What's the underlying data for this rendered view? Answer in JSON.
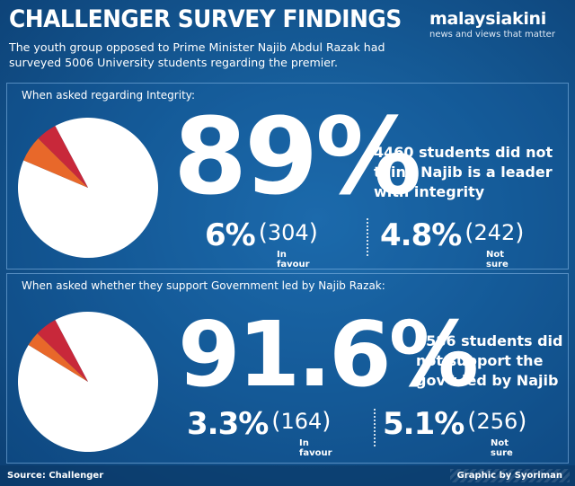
{
  "header": {
    "title": "CHALLENGER SURVEY FINDINGS",
    "subtitle": "The youth group opposed to Prime Minister Najib Abdul Razak had surveyed 5006 University students regarding the premier.",
    "brand_name": "malaysiakini",
    "brand_tagline": "news and views that matter"
  },
  "colors": {
    "background": "#155a96",
    "pie_majority": "#ffffff",
    "pie_favour": "#e8682a",
    "pie_not_sure": "#c8283a"
  },
  "chart_data": [
    {
      "type": "pie",
      "title": "When asked regarding Integrity:",
      "slices": [
        {
          "label": "",
          "value": 89.0,
          "count": 4460
        },
        {
          "label": "In favour",
          "value": 6.0,
          "count": 304
        },
        {
          "label": "Not sure",
          "value": 4.8,
          "count": 242
        }
      ],
      "headline_value": "89",
      "headline_unit": "%",
      "description": "4460 students did not think Najib is a leader with integrity",
      "stats": [
        {
          "pct": "6%",
          "count": "304",
          "label": "In favour"
        },
        {
          "pct": "4.8%",
          "count": "242",
          "label": "Not sure"
        }
      ]
    },
    {
      "type": "pie",
      "title": "When asked whether they support Government led by Najib Razak:",
      "slices": [
        {
          "label": "",
          "value": 91.6,
          "count": 4586
        },
        {
          "label": "In favour",
          "value": 3.3,
          "count": 164
        },
        {
          "label": "Not sure",
          "value": 5.1,
          "count": 256
        }
      ],
      "headline_value": "91.6",
      "headline_unit": "%",
      "description": "4586 students did not support the gov't led by Najib",
      "stats": [
        {
          "pct": "3.3%",
          "count": "164",
          "label": "In favour"
        },
        {
          "pct": "5.1%",
          "count": "256",
          "label": "Not sure"
        }
      ]
    }
  ],
  "footer": {
    "source": "Source: Challenger",
    "credit": "Graphic by Syoriman"
  }
}
